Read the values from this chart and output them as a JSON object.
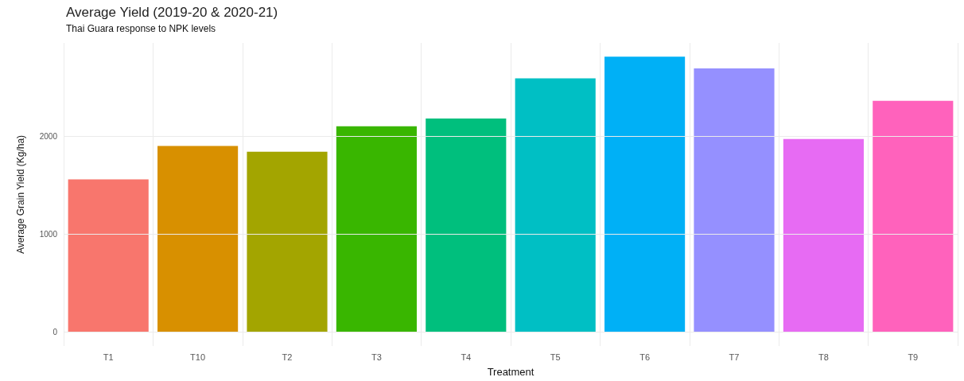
{
  "chart_data": {
    "type": "bar",
    "title": "Average Yield (2019-20 & 2020-21)",
    "subtitle": "Thai Guara response to NPK levels",
    "xlabel": "Treatment",
    "ylabel": "Average Grain Yield (Kg/ha)",
    "categories": [
      "T1",
      "T10",
      "T2",
      "T3",
      "T4",
      "T5",
      "T6",
      "T7",
      "T8",
      "T9"
    ],
    "values": [
      1560,
      1900,
      1840,
      2100,
      2180,
      2590,
      2810,
      2690,
      1970,
      2360
    ],
    "colors": [
      "#f8766d",
      "#d89000",
      "#a3a500",
      "#39b600",
      "#00bf7d",
      "#00bfc4",
      "#00b0f6",
      "#9590ff",
      "#e76bf3",
      "#ff62bc"
    ],
    "ylim": [
      -140,
      2950
    ],
    "yticks": [
      0,
      1000,
      2000
    ],
    "grid": true
  }
}
